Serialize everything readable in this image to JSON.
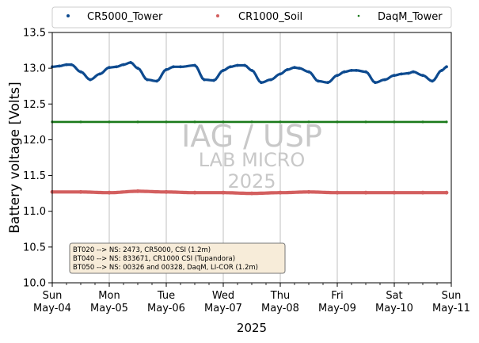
{
  "chart_data": {
    "type": "scatter",
    "title": "",
    "xlabel": "2025",
    "ylabel": "Battery voltage [Volts]",
    "ylim": [
      10.0,
      13.5
    ],
    "yticks": [
      "10.0",
      "10.5",
      "11.0",
      "11.5",
      "12.0",
      "12.5",
      "13.0",
      "13.5"
    ],
    "xlim": [
      "2025-05-04",
      "2025-05-11"
    ],
    "xticks": [
      {
        "day": "Sun",
        "date": "May-04"
      },
      {
        "day": "Mon",
        "date": "May-05"
      },
      {
        "day": "Tue",
        "date": "May-06"
      },
      {
        "day": "Wed",
        "date": "May-07"
      },
      {
        "day": "Thu",
        "date": "May-08"
      },
      {
        "day": "Fri",
        "date": "May-09"
      },
      {
        "day": "Sat",
        "date": "May-10"
      },
      {
        "day": "Sun",
        "date": "May-11"
      }
    ],
    "grid": "vertical",
    "legend_position": "top",
    "series": [
      {
        "name": "CR5000_Tower",
        "color": "#0d4a8f",
        "x": [
          "2025-05-04 00:00",
          "2025-05-04 03:00",
          "2025-05-04 06:00",
          "2025-05-04 08:00",
          "2025-05-04 12:00",
          "2025-05-04 16:00",
          "2025-05-04 20:00",
          "2025-05-05 00:00",
          "2025-05-05 03:00",
          "2025-05-05 06:00",
          "2025-05-05 09:00",
          "2025-05-05 12:00",
          "2025-05-05 16:00",
          "2025-05-05 20:00",
          "2025-05-06 00:00",
          "2025-05-06 03:00",
          "2025-05-06 06:00",
          "2025-05-06 12:00",
          "2025-05-06 16:00",
          "2025-05-06 20:00",
          "2025-05-07 00:00",
          "2025-05-07 03:00",
          "2025-05-07 06:00",
          "2025-05-07 09:00",
          "2025-05-07 12:00",
          "2025-05-07 16:00",
          "2025-05-07 20:00",
          "2025-05-08 00:00",
          "2025-05-08 03:00",
          "2025-05-08 06:00",
          "2025-05-08 08:00",
          "2025-05-08 12:00",
          "2025-05-08 16:00",
          "2025-05-08 20:00",
          "2025-05-09 00:00",
          "2025-05-09 03:00",
          "2025-05-09 06:00",
          "2025-05-09 08:00",
          "2025-05-09 12:00",
          "2025-05-09 16:00",
          "2025-05-09 20:00",
          "2025-05-10 00:00",
          "2025-05-10 03:00",
          "2025-05-10 06:00",
          "2025-05-10 08:00",
          "2025-05-10 12:00",
          "2025-05-10 16:00",
          "2025-05-10 20:00",
          "2025-05-10 22:00"
        ],
        "y": [
          13.02,
          13.03,
          13.05,
          13.05,
          12.95,
          12.84,
          12.92,
          13.01,
          13.02,
          13.05,
          13.08,
          13.0,
          12.84,
          12.82,
          12.98,
          13.02,
          13.02,
          13.04,
          12.84,
          12.83,
          12.97,
          13.02,
          13.04,
          13.04,
          12.97,
          12.8,
          12.84,
          12.92,
          12.98,
          13.01,
          13.0,
          12.95,
          12.82,
          12.8,
          12.9,
          12.95,
          12.97,
          12.97,
          12.95,
          12.8,
          12.84,
          12.9,
          12.92,
          12.93,
          12.95,
          12.9,
          12.82,
          12.97,
          13.02
        ]
      },
      {
        "name": "CR1000_Soil",
        "color": "#d35f5f",
        "x": [
          "2025-05-04 00:00",
          "2025-05-04 12:00",
          "2025-05-05 00:00",
          "2025-05-05 12:00",
          "2025-05-06 00:00",
          "2025-05-06 12:00",
          "2025-05-07 00:00",
          "2025-05-07 12:00",
          "2025-05-08 00:00",
          "2025-05-08 12:00",
          "2025-05-09 00:00",
          "2025-05-09 12:00",
          "2025-05-10 00:00",
          "2025-05-10 12:00",
          "2025-05-10 22:00"
        ],
        "y": [
          11.27,
          11.27,
          11.26,
          11.28,
          11.27,
          11.26,
          11.26,
          11.25,
          11.26,
          11.27,
          11.26,
          11.26,
          11.26,
          11.26,
          11.26
        ]
      },
      {
        "name": "DaqM_Tower",
        "color": "#1a7a1a",
        "x": [
          "2025-05-04 00:00",
          "2025-05-04 12:00",
          "2025-05-05 00:00",
          "2025-05-05 12:00",
          "2025-05-06 00:00",
          "2025-05-06 12:00",
          "2025-05-07 00:00",
          "2025-05-07 12:00",
          "2025-05-08 00:00",
          "2025-05-08 12:00",
          "2025-05-09 00:00",
          "2025-05-09 12:00",
          "2025-05-10 00:00",
          "2025-05-10 12:00",
          "2025-05-10 22:00"
        ],
        "y": [
          12.25,
          12.25,
          12.25,
          12.25,
          12.25,
          12.25,
          12.25,
          12.25,
          12.25,
          12.25,
          12.25,
          12.25,
          12.25,
          12.25,
          12.25
        ]
      }
    ],
    "watermark": [
      "IAG / USP",
      "LAB MICRO",
      "2025"
    ],
    "info_box": [
      "BT020 --> NS: 2473, CR5000, CSI (1.2m)",
      "BT040 --> NS: 833671, CR1000 CSI (Tupandora)",
      "BT050 --> NS: 00326 and 00328, DaqM, LI-COR (1.2m)"
    ]
  }
}
